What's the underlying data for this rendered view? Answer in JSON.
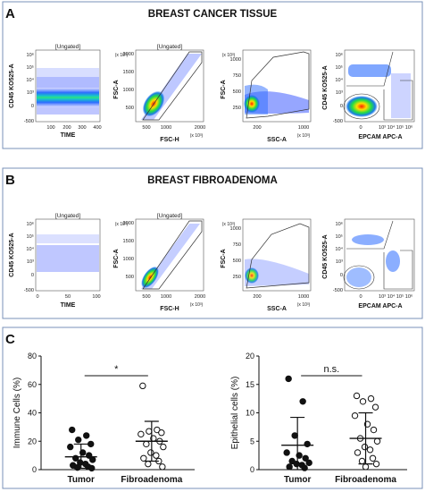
{
  "panels": {
    "A": {
      "letter": "A",
      "title": "BREAST CANCER TISSUE",
      "plots": [
        {
          "gate_title": "[Ungated]",
          "xlabel": "TIME",
          "ylabel": "CD45 KO525-A",
          "xticks": [
            "100",
            "200",
            "300",
            "400"
          ],
          "yticks": [
            "10⁶",
            "10⁵",
            "10⁴",
            "10³",
            "0",
            "-500"
          ]
        },
        {
          "gate_title": "[Ungated]",
          "xlabel": "FSC-H",
          "ylabel": "FSC-A",
          "xunit": "(x 10³)",
          "yunit": "(x 10³)",
          "xticks": [
            "500",
            "1000",
            "2000"
          ],
          "yticks": [
            "2000",
            "1500",
            "1000",
            "500"
          ]
        },
        {
          "gate_title": "",
          "xlabel": "SSC-A",
          "ylabel": "FSC-A",
          "xunit": "(x 10³)",
          "yunit": "(x 10³)",
          "xticks": [
            "200",
            "1000"
          ],
          "yticks": [
            "1000",
            "750",
            "500",
            "250"
          ]
        },
        {
          "gate_title": "",
          "xlabel": "EPCAM APC-A",
          "ylabel": "CD45 KO525-A",
          "xticks": [
            "0",
            "10³",
            "10⁴",
            "10⁵",
            "10⁶"
          ],
          "yticks": [
            "10⁶",
            "10⁵",
            "10⁴",
            "10³",
            "0",
            "-500"
          ]
        }
      ]
    },
    "B": {
      "letter": "B",
      "title": "BREAST FIBROADENOMA",
      "plots": [
        {
          "gate_title": "[Ungated]",
          "xlabel": "TIME",
          "ylabel": "CD45 KO525-A",
          "xticks": [
            "0",
            "50",
            "100"
          ],
          "yticks": [
            "10⁶",
            "10⁵",
            "10⁴",
            "10³",
            "0",
            "-500"
          ]
        },
        {
          "gate_title": "[Ungated]",
          "xlabel": "FSC-H",
          "ylabel": "FSC-A",
          "xunit": "(x 10³)",
          "yunit": "(x 10³)",
          "xticks": [
            "500",
            "1000",
            "2000"
          ],
          "yticks": [
            "2000",
            "1500",
            "1000",
            "500"
          ]
        },
        {
          "gate_title": "",
          "xlabel": "SSC-A",
          "ylabel": "FSC-A",
          "xunit": "(x 10³)",
          "yunit": "(x 10³)",
          "xticks": [
            "200",
            "1000"
          ],
          "yticks": [
            "1000",
            "750",
            "500",
            "250"
          ]
        },
        {
          "gate_title": "",
          "xlabel": "EPCAM APC-A",
          "ylabel": "CD45 KO525-A",
          "xticks": [
            "0",
            "10³",
            "10⁴",
            "10⁵",
            "10⁶"
          ],
          "yticks": [
            "10⁶",
            "10⁵",
            "10⁴",
            "10³",
            "0",
            "-500"
          ]
        }
      ]
    },
    "C": {
      "letter": "C"
    }
  },
  "chart_data": [
    {
      "type": "scatter",
      "ylabel": "Immune Cells (%)",
      "ylim": [
        0,
        80
      ],
      "yticks": [
        0,
        20,
        40,
        60,
        80
      ],
      "categories": [
        "Tumor",
        "Fibroadenoma"
      ],
      "significance": "*",
      "series": [
        {
          "name": "Tumor",
          "marker": "filled",
          "mean": 9,
          "sd_low": 1,
          "sd_high": 18,
          "values": [
            28,
            24,
            21,
            18,
            16,
            12,
            10,
            8,
            7,
            5,
            4,
            3,
            2,
            1.5,
            1
          ]
        },
        {
          "name": "Fibroadenoma",
          "marker": "open",
          "mean": 20,
          "sd_low": 6,
          "sd_high": 34,
          "values": [
            59,
            28,
            27,
            26,
            25,
            22,
            20,
            18,
            16,
            12,
            10,
            8,
            6,
            4,
            2
          ]
        }
      ]
    },
    {
      "type": "scatter",
      "ylabel": "Epithelial cells (%)",
      "ylim": [
        0,
        20
      ],
      "yticks": [
        0,
        5,
        10,
        15,
        20
      ],
      "categories": [
        "Tumor",
        "Fibroadenoma"
      ],
      "significance": "n.s.",
      "series": [
        {
          "name": "Tumor",
          "marker": "filled",
          "mean": 4.3,
          "sd_low": 0,
          "sd_high": 9.2,
          "values": [
            16,
            12,
            6,
            4.5,
            3,
            2.5,
            2,
            1.5,
            1.2,
            1,
            0.8,
            0.5,
            0.3
          ]
        },
        {
          "name": "Fibroadenoma",
          "marker": "open",
          "mean": 5.5,
          "sd_low": 1,
          "sd_high": 10,
          "values": [
            13,
            12.5,
            12,
            11,
            9.5,
            8,
            7,
            5.5,
            5,
            4,
            3.5,
            3,
            2,
            1.5,
            1,
            0.5
          ]
        }
      ]
    }
  ]
}
